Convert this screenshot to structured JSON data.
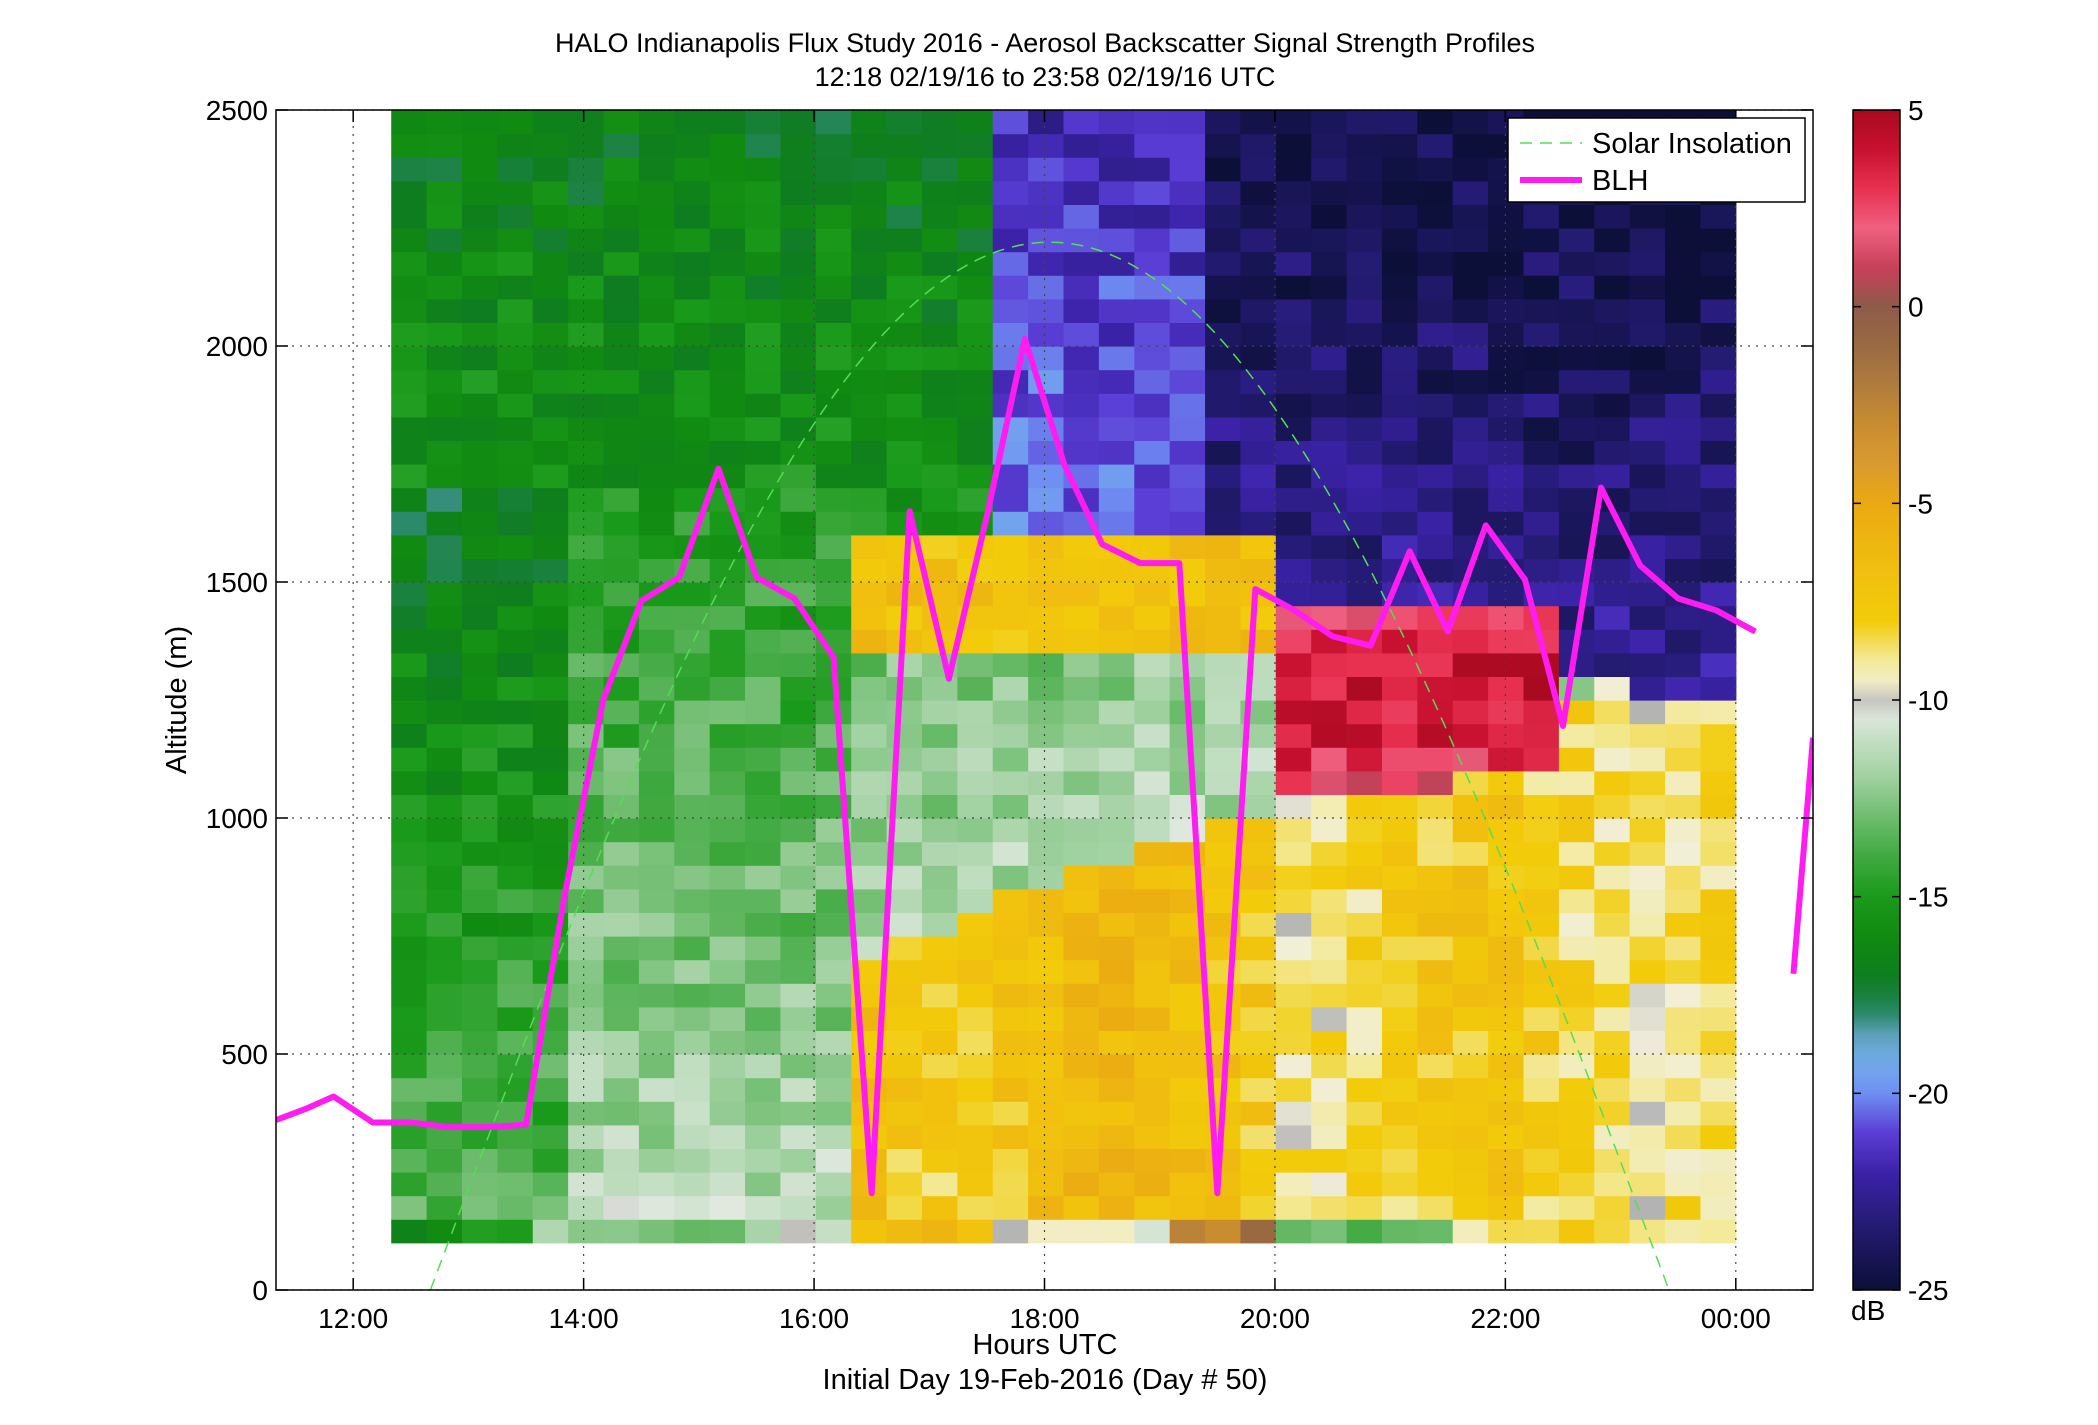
{
  "chart_data": {
    "type": "heatmap",
    "title": "HALO Indianapolis Flux Study 2016 - Aerosol Backscatter Signal Strength Profiles",
    "subtitle": "12:18 02/19/16 to 23:58 02/19/16  UTC",
    "xlabel": "Hours UTC",
    "xlabel2": "Initial Day 19-Feb-2016 (Day # 50)",
    "ylabel": "Altitude (m)",
    "xlim": [
      11.33,
      24.67
    ],
    "ylim": [
      0,
      2500
    ],
    "x_ticks": [
      12,
      14,
      16,
      18,
      20,
      22,
      24
    ],
    "x_tick_labels": [
      "12:00",
      "14:00",
      "16:00",
      "18:00",
      "20:00",
      "22:00",
      "00:00"
    ],
    "y_ticks": [
      0,
      500,
      1000,
      1500,
      2000,
      2500
    ],
    "y_tick_labels": [
      "0",
      "500",
      "1000",
      "1500",
      "2000",
      "2500"
    ],
    "grid": true,
    "legend_placement": "top-right",
    "legend": [
      {
        "name": "Solar Insolation",
        "color": "#55dd55",
        "style": "dashed"
      },
      {
        "name": "BLH",
        "color": "#ff1cf0",
        "style": "solid"
      }
    ],
    "colorbar": {
      "unit": "dB",
      "range": [
        -25,
        5
      ],
      "ticks": [
        5,
        0,
        -5,
        -10,
        -15,
        -20,
        -25
      ],
      "tick_labels": [
        "5",
        "0",
        "-5",
        "-10",
        "-15",
        "-20",
        "-25"
      ]
    },
    "heatmap": {
      "x_start": 12.33,
      "x_end": 24.0,
      "altitude_bottom": 100,
      "altitude_top": 2500,
      "row_height_m": 50,
      "n_cols": 38,
      "profile_top_start_m": 1650,
      "profile_top_end_m": 1250
    },
    "solar_insolation": {
      "x_start": 12.67,
      "x_end": 23.42,
      "peak_x": 17.9,
      "peak_altitude": 2220
    },
    "blh": {
      "segments": [
        {
          "x": [
            11.33,
            11.6,
            11.83,
            12.17,
            12.5,
            12.83,
            13.17,
            13.5,
            13.83,
            14.17,
            14.5,
            14.83,
            15.17,
            15.5,
            15.83,
            16.17,
            16.5,
            16.83,
            17.17,
            17.5,
            17.83,
            18.17,
            18.5,
            18.83,
            19.17,
            19.5,
            19.83,
            20.17,
            20.5,
            20.83,
            21.17,
            21.5,
            21.83,
            22.17,
            22.5,
            22.83,
            23.17,
            23.5,
            23.83,
            24.17
          ],
          "y": [
            360,
            385,
            410,
            355,
            355,
            345,
            345,
            350,
            830,
            1250,
            1460,
            1510,
            1740,
            1510,
            1465,
            1340,
            205,
            1650,
            1295,
            1640,
            2015,
            1750,
            1580,
            1540,
            1540,
            205,
            1485,
            1440,
            1385,
            1365,
            1565,
            1395,
            1620,
            1505,
            1195,
            1700,
            1535,
            1465,
            1440,
            1395
          ]
        },
        {
          "x": [
            24.5,
            24.67
          ],
          "y": [
            670,
            1170
          ]
        }
      ]
    }
  }
}
